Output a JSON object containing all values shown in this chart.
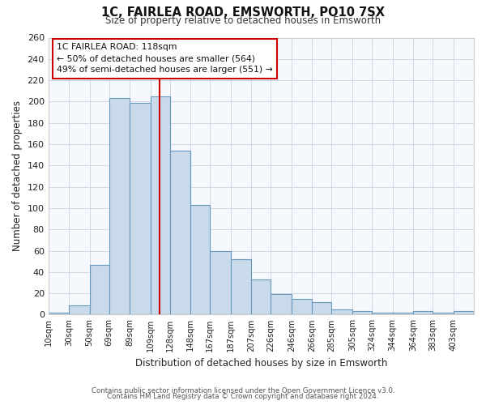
{
  "title": "1C, FAIRLEA ROAD, EMSWORTH, PO10 7SX",
  "subtitle": "Size of property relative to detached houses in Emsworth",
  "xlabel": "Distribution of detached houses by size in Emsworth",
  "ylabel": "Number of detached properties",
  "categories": [
    "10sqm",
    "30sqm",
    "50sqm",
    "69sqm",
    "89sqm",
    "109sqm",
    "128sqm",
    "148sqm",
    "167sqm",
    "187sqm",
    "207sqm",
    "226sqm",
    "246sqm",
    "266sqm",
    "285sqm",
    "305sqm",
    "324sqm",
    "344sqm",
    "364sqm",
    "383sqm",
    "403sqm"
  ],
  "values": [
    2,
    9,
    47,
    203,
    199,
    205,
    154,
    103,
    60,
    52,
    33,
    19,
    15,
    12,
    5,
    3,
    2,
    2,
    3,
    2,
    3
  ],
  "bar_color": "#c9daea",
  "bar_edge_color": "#6699bb",
  "property_line_x": 118,
  "bin_edges": [
    10,
    30,
    50,
    69,
    89,
    109,
    128,
    148,
    167,
    187,
    207,
    226,
    246,
    266,
    285,
    305,
    324,
    344,
    364,
    383,
    403,
    423
  ],
  "annotation_title": "1C FAIRLEA ROAD: 118sqm",
  "annotation_line1": "← 50% of detached houses are smaller (564)",
  "annotation_line2": "49% of semi-detached houses are larger (551) →",
  "annotation_box_color": "#ffffff",
  "annotation_box_edge": "#cc0000",
  "vline_color": "#cc0000",
  "ylim": [
    0,
    260
  ],
  "yticks": [
    0,
    20,
    40,
    60,
    80,
    100,
    120,
    140,
    160,
    180,
    200,
    220,
    240,
    260
  ],
  "footer1": "Contains HM Land Registry data © Crown copyright and database right 2024.",
  "footer2": "Contains public sector information licensed under the Open Government Licence v3.0.",
  "bg_color": "#ffffff",
  "plot_bg_color": "#f5f8fc",
  "grid_color": "#d0d8e4",
  "title_color": "#111111",
  "subtitle_color": "#333333",
  "footer_color": "#555555"
}
